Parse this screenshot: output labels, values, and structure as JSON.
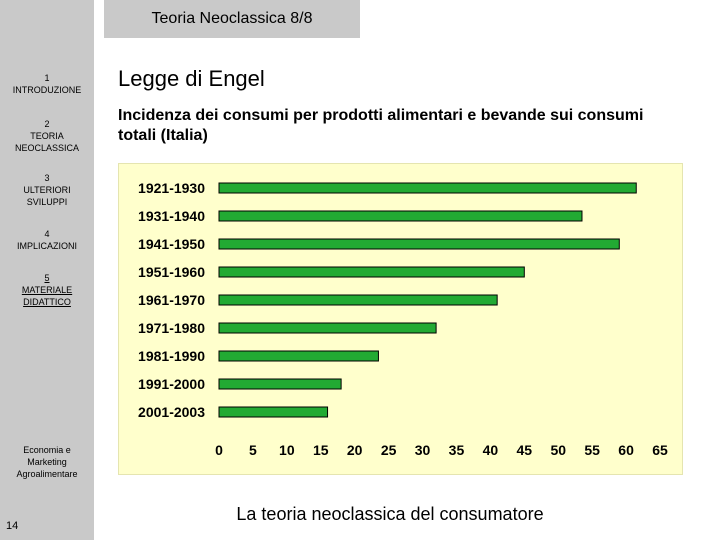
{
  "title_bar": "Teoria Neoclassica 8/8",
  "heading": "Legge di Engel",
  "subheading": "Incidenza dei consumi per prodotti alimentari e bevande sui consumi totali (Italia)",
  "footer": "La teoria neoclassica del consumatore",
  "sidebar": {
    "items": [
      {
        "num": "1",
        "label": "INTRODUZIONE"
      },
      {
        "num": "2",
        "label": "TEORIA NEOCLASSICA"
      },
      {
        "num": "3",
        "label": "ULTERIORI SVILUPPI"
      },
      {
        "num": "4",
        "label": "IMPLICAZIONI"
      },
      {
        "num": "5",
        "label": "MATERIALE DIDATTICO"
      }
    ],
    "org": "Economia e Marketing Agroalimentare",
    "page_number": "14"
  },
  "colors": {
    "bar_fill": "#22aa33",
    "bar_stroke": "#000000",
    "plot_bg": "#ffffcc",
    "sidebar_bg": "#c9c9c9"
  },
  "chart_data": {
    "type": "bar",
    "orientation": "horizontal",
    "categories": [
      "1921-1930",
      "1931-1940",
      "1941-1950",
      "1951-1960",
      "1961-1970",
      "1971-1980",
      "1981-1990",
      "1991-2000",
      "2001-2003"
    ],
    "values": [
      61.5,
      53.5,
      59,
      45,
      41,
      32,
      23.5,
      18,
      16
    ],
    "xlim": [
      0,
      65
    ],
    "xticks": [
      "0",
      "5",
      "10",
      "15",
      "20",
      "25",
      "30",
      "35",
      "40",
      "45",
      "50",
      "55",
      "60",
      "65"
    ],
    "grid": false,
    "legend": "none"
  }
}
